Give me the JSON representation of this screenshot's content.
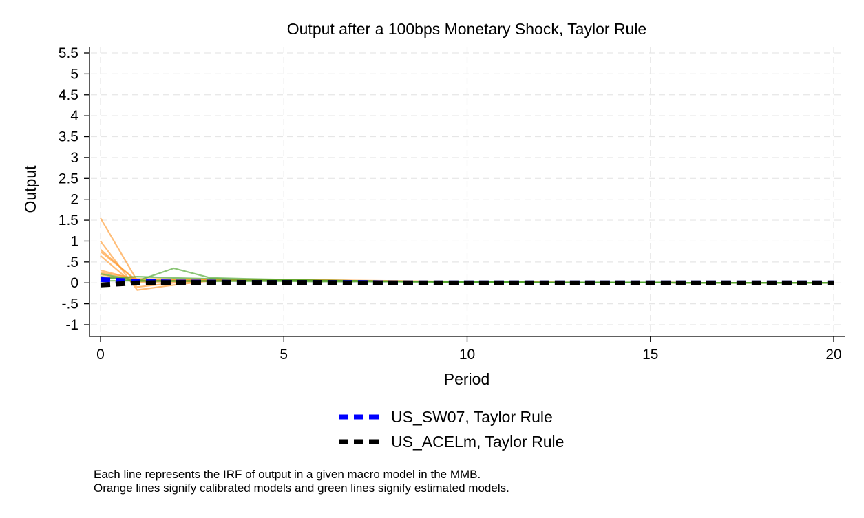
{
  "chart_data": {
    "type": "line",
    "title": "Output after a 100bps Monetary Shock, Taylor Rule",
    "xlabel": "Period",
    "ylabel": "Output",
    "xlim": [
      0,
      20
    ],
    "ylim": [
      -1,
      5.5
    ],
    "x_ticks": [
      0,
      5,
      10,
      15,
      20
    ],
    "x_tick_labels": [
      "0",
      "5",
      "10",
      "15",
      "20"
    ],
    "y_ticks": [
      -1,
      -0.5,
      0,
      0.5,
      1,
      1.5,
      2,
      2.5,
      3,
      3.5,
      4,
      4.5,
      5,
      5.5
    ],
    "y_tick_labels": [
      "-1",
      "-.5",
      "0",
      ".5",
      "1",
      "1.5",
      "2",
      "2.5",
      "3",
      "3.5",
      "4",
      "4.5",
      "5",
      "5.5"
    ],
    "grid": true,
    "colors": {
      "calibrated": "#ff9a30",
      "estimated": "#4da62e",
      "highlight_1": "#0000ff",
      "highlight_2": "#000000"
    },
    "model_lines": [
      {
        "group": "calibrated",
        "x": [
          0,
          1,
          2,
          3,
          4,
          5,
          6,
          7,
          8,
          9,
          10,
          11,
          12,
          13,
          14,
          15,
          16,
          17,
          18,
          19,
          20
        ],
        "values": [
          1.55,
          0.05,
          0.06,
          0.07,
          0.07,
          0.07,
          0.06,
          0.05,
          0.04,
          0.03,
          0.02,
          0.02,
          0.01,
          0.01,
          0.01,
          0.01,
          0,
          0,
          0,
          0,
          0
        ]
      },
      {
        "group": "calibrated",
        "x": [
          0,
          1,
          2,
          3,
          4,
          5,
          6,
          7,
          8,
          9,
          10,
          11,
          12,
          13,
          14,
          15,
          16,
          17,
          18,
          19,
          20
        ],
        "values": [
          1.0,
          -0.17,
          -0.05,
          0.05,
          0.08,
          0.08,
          0.07,
          0.05,
          0.04,
          0.03,
          0.02,
          0.02,
          0.01,
          0.01,
          0.01,
          0.01,
          0,
          0,
          0,
          0,
          0
        ]
      },
      {
        "group": "calibrated",
        "x": [
          0,
          1,
          2,
          3,
          4,
          5,
          6,
          7,
          8,
          9,
          10,
          11,
          12,
          13,
          14,
          15,
          16,
          17,
          18,
          19,
          20
        ],
        "values": [
          0.8,
          0.02,
          0.03,
          0.05,
          0.06,
          0.06,
          0.05,
          0.05,
          0.04,
          0.03,
          0.02,
          0.02,
          0.01,
          0.01,
          0.01,
          0.01,
          0,
          0,
          0,
          0,
          0
        ]
      },
      {
        "group": "calibrated",
        "x": [
          0,
          1,
          2,
          3,
          4,
          5,
          6,
          7,
          8,
          9,
          10,
          11,
          12,
          13,
          14,
          15,
          16,
          17,
          18,
          19,
          20
        ],
        "values": [
          0.75,
          0.05,
          0.06,
          0.07,
          0.07,
          0.07,
          0.06,
          0.05,
          0.04,
          0.03,
          0.02,
          0.02,
          0.01,
          0.01,
          0.01,
          0.01,
          0,
          0,
          0,
          0,
          0
        ]
      },
      {
        "group": "calibrated",
        "x": [
          0,
          1,
          2,
          3,
          4,
          5,
          6,
          7,
          8,
          9,
          10,
          11,
          12,
          13,
          14,
          15,
          16,
          17,
          18,
          19,
          20
        ],
        "values": [
          0.65,
          -0.1,
          0.0,
          0.04,
          0.06,
          0.06,
          0.05,
          0.05,
          0.04,
          0.03,
          0.02,
          0.02,
          0.01,
          0.01,
          0.01,
          0.01,
          0,
          0,
          0,
          0,
          0
        ]
      },
      {
        "group": "calibrated",
        "x": [
          0,
          1,
          2,
          3,
          4,
          5,
          6,
          7,
          8,
          9,
          10,
          11,
          12,
          13,
          14,
          15,
          16,
          17,
          18,
          19,
          20
        ],
        "values": [
          0.3,
          0.08,
          0.08,
          0.08,
          0.08,
          0.07,
          0.06,
          0.05,
          0.04,
          0.03,
          0.02,
          0.02,
          0.01,
          0.01,
          0.01,
          0.01,
          0,
          0,
          0,
          0,
          0
        ]
      },
      {
        "group": "calibrated",
        "x": [
          0,
          1,
          2,
          3,
          4,
          5,
          6,
          7,
          8,
          9,
          10,
          11,
          12,
          13,
          14,
          15,
          16,
          17,
          18,
          19,
          20
        ],
        "values": [
          0.25,
          0.1,
          0.09,
          0.09,
          0.08,
          0.08,
          0.07,
          0.06,
          0.05,
          0.04,
          0.03,
          0.02,
          0.02,
          0.01,
          0.01,
          0.01,
          0,
          0,
          0,
          0,
          0
        ]
      },
      {
        "group": "calibrated",
        "x": [
          0,
          1,
          2,
          3,
          4,
          5,
          6,
          7,
          8,
          9,
          10,
          11,
          12,
          13,
          14,
          15,
          16,
          17,
          18,
          19,
          20
        ],
        "values": [
          0.2,
          0.05,
          0.06,
          0.06,
          0.06,
          0.06,
          0.05,
          0.05,
          0.04,
          0.03,
          0.02,
          0.02,
          0.01,
          0.01,
          0.01,
          0.01,
          0,
          0,
          0,
          0,
          0
        ]
      },
      {
        "group": "estimated",
        "x": [
          0,
          1,
          2,
          3,
          4,
          5,
          6,
          7,
          8,
          9,
          10,
          11,
          12,
          13,
          14,
          15,
          16,
          17,
          18,
          19,
          20
        ],
        "values": [
          0.1,
          0.15,
          0.12,
          0.1,
          0.08,
          0.07,
          0.06,
          0.05,
          0.04,
          0.03,
          0.02,
          0.02,
          0.01,
          0.01,
          0.01,
          0.01,
          0,
          0,
          0,
          0,
          0
        ]
      },
      {
        "group": "estimated",
        "x": [
          0,
          1,
          2,
          3,
          4,
          5,
          6,
          7,
          8,
          9,
          10,
          11,
          12,
          13,
          14,
          15,
          16,
          17,
          18,
          19,
          20
        ],
        "values": [
          0.05,
          0.05,
          0.35,
          0.12,
          0.1,
          0.08,
          0.06,
          0.05,
          0.04,
          0.03,
          0.02,
          0.02,
          0.01,
          0.01,
          0.01,
          0.01,
          0,
          0,
          0,
          0,
          0
        ]
      },
      {
        "group": "estimated",
        "x": [
          0,
          1,
          2,
          3,
          4,
          5,
          6,
          7,
          8,
          9,
          10,
          11,
          12,
          13,
          14,
          15,
          16,
          17,
          18,
          19,
          20
        ],
        "values": [
          0.22,
          0.06,
          0.05,
          0.05,
          0.05,
          0.05,
          0.04,
          0.04,
          0.03,
          0.03,
          0.02,
          0.02,
          0.01,
          0.01,
          0.01,
          0.01,
          0,
          0,
          0,
          0,
          0
        ]
      },
      {
        "group": "estimated",
        "x": [
          0,
          1,
          2,
          3,
          4,
          5,
          6,
          7,
          8,
          9,
          10,
          11,
          12,
          13,
          14,
          15,
          16,
          17,
          18,
          19,
          20
        ],
        "values": [
          0.15,
          0.04,
          0.04,
          0.04,
          0.04,
          0.04,
          0.03,
          0.03,
          0.03,
          0.02,
          0.02,
          0.02,
          0.01,
          0.01,
          0.01,
          0.01,
          0,
          0,
          0,
          0,
          0
        ]
      }
    ],
    "series": [
      {
        "name": "US_SW07, Taylor Rule",
        "color": "#0000ff",
        "x": [
          0,
          1,
          2,
          3,
          4,
          5,
          6,
          7,
          8,
          9,
          10,
          11,
          12,
          13,
          14,
          15,
          16,
          17,
          18,
          19,
          20
        ],
        "values": [
          0.08,
          0.04,
          0.02,
          0.02,
          0.01,
          0.01,
          0.01,
          0.01,
          0,
          0,
          0,
          0,
          0,
          0,
          0,
          0,
          0,
          0,
          0,
          0,
          0
        ]
      },
      {
        "name": "US_ACELm, Taylor Rule",
        "color": "#000000",
        "x": [
          0,
          1,
          2,
          3,
          4,
          5,
          6,
          7,
          8,
          9,
          10,
          11,
          12,
          13,
          14,
          15,
          16,
          17,
          18,
          19,
          20
        ],
        "values": [
          -0.05,
          0.0,
          0.01,
          0.01,
          0.01,
          0.01,
          0.01,
          0,
          0,
          0,
          0,
          0,
          0,
          0,
          0,
          0,
          0,
          0,
          0,
          0,
          0
        ]
      }
    ]
  },
  "notes": [
    "Each line represents the IRF of output in a given macro model in the MMB.",
    "Orange lines signify calibrated models and green lines signify estimated models."
  ]
}
